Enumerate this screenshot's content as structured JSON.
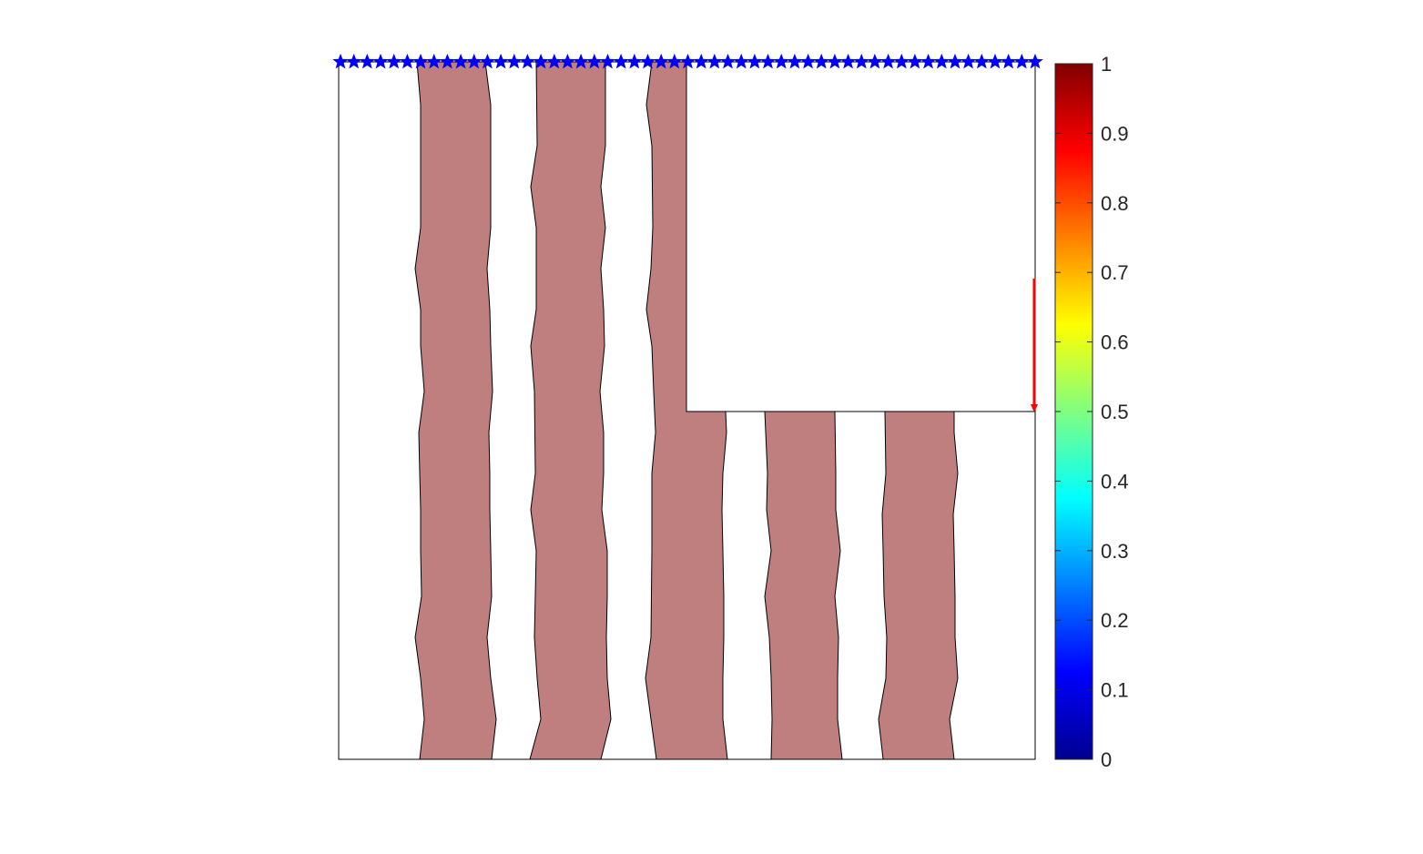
{
  "figure": {
    "title": "",
    "domain_width": 1,
    "domain_height": 1,
    "cutout": {
      "description": "empty L-shaped notch (top-right quadrant removed)",
      "x_range": [
        0.5,
        1.0
      ],
      "y_range": [
        0.5,
        1.0
      ]
    },
    "struts": {
      "fill_color": "#bf7f7f",
      "edge_color": "#000000",
      "count": 5
    },
    "supports": {
      "location": "top edge",
      "marker": "blue-star",
      "color": "#0000ff",
      "count": 53
    },
    "load": {
      "location": "right edge of upper block",
      "direction": "downward",
      "color": "#ff0000"
    }
  },
  "colorbar": {
    "colormap": "jet",
    "range": [
      0,
      1
    ],
    "tick_labels": [
      "0",
      "0.1",
      "0.2",
      "0.3",
      "0.4",
      "0.5",
      "0.6",
      "0.7",
      "0.8",
      "0.9",
      "1"
    ]
  }
}
